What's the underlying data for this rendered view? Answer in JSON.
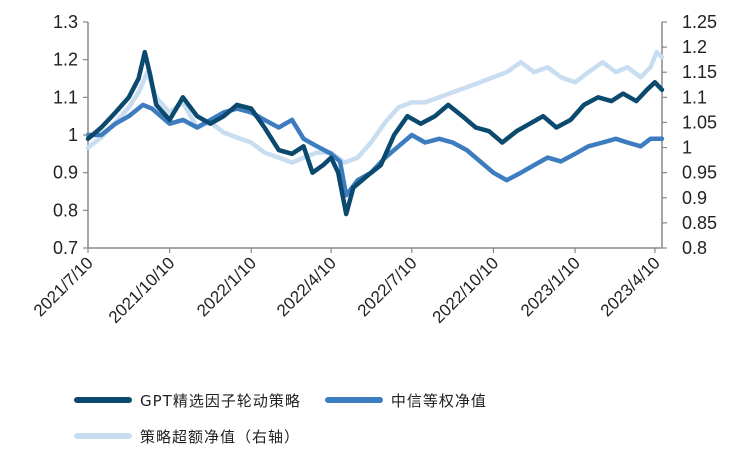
{
  "chart_data": {
    "type": "line",
    "x_ticks": [
      "2021/7/10",
      "2021/10/10",
      "2022/1/10",
      "2022/4/10",
      "2022/7/10",
      "2022/10/10",
      "2023/1/10",
      "2023/4/10"
    ],
    "x_range": [
      "2021-07-10",
      "2023-04-18"
    ],
    "y_left": {
      "ticks": [
        "1.3",
        "1.2",
        "1.1",
        "1",
        "0.9",
        "0.8",
        "0.7"
      ],
      "range": [
        0.7,
        1.3
      ]
    },
    "y_right": {
      "ticks": [
        "1.25",
        "1.2",
        "1.15",
        "1.1",
        "1.05",
        "1",
        "0.95",
        "0.9",
        "0.85",
        "0.8"
      ],
      "range": [
        0.8,
        1.25
      ]
    },
    "grid": false,
    "legend_position": "bottom",
    "series": [
      {
        "name": "GPT精选因子轮动策略",
        "axis": "left",
        "color": "#0b4a6e",
        "points": [
          [
            "2021-07-10",
            0.99
          ],
          [
            "2021-07-25",
            1.02
          ],
          [
            "2021-08-10",
            1.06
          ],
          [
            "2021-08-25",
            1.1
          ],
          [
            "2021-09-05",
            1.15
          ],
          [
            "2021-09-12",
            1.22
          ],
          [
            "2021-09-18",
            1.16
          ],
          [
            "2021-09-25",
            1.08
          ],
          [
            "2021-10-10",
            1.04
          ],
          [
            "2021-10-25",
            1.1
          ],
          [
            "2021-11-10",
            1.05
          ],
          [
            "2021-11-25",
            1.03
          ],
          [
            "2021-12-10",
            1.05
          ],
          [
            "2021-12-25",
            1.08
          ],
          [
            "2022-01-10",
            1.07
          ],
          [
            "2022-01-25",
            1.02
          ],
          [
            "2022-02-10",
            0.96
          ],
          [
            "2022-02-25",
            0.95
          ],
          [
            "2022-03-10",
            0.97
          ],
          [
            "2022-03-20",
            0.9
          ],
          [
            "2022-04-01",
            0.92
          ],
          [
            "2022-04-10",
            0.94
          ],
          [
            "2022-04-18",
            0.9
          ],
          [
            "2022-04-27",
            0.79
          ],
          [
            "2022-05-05",
            0.86
          ],
          [
            "2022-05-20",
            0.89
          ],
          [
            "2022-06-05",
            0.92
          ],
          [
            "2022-06-20",
            1.0
          ],
          [
            "2022-07-05",
            1.05
          ],
          [
            "2022-07-20",
            1.03
          ],
          [
            "2022-08-05",
            1.05
          ],
          [
            "2022-08-20",
            1.08
          ],
          [
            "2022-09-05",
            1.05
          ],
          [
            "2022-09-20",
            1.02
          ],
          [
            "2022-10-05",
            1.01
          ],
          [
            "2022-10-20",
            0.98
          ],
          [
            "2022-11-05",
            1.01
          ],
          [
            "2022-11-20",
            1.03
          ],
          [
            "2022-12-05",
            1.05
          ],
          [
            "2022-12-20",
            1.02
          ],
          [
            "2023-01-05",
            1.04
          ],
          [
            "2023-01-20",
            1.08
          ],
          [
            "2023-02-05",
            1.1
          ],
          [
            "2023-02-20",
            1.09
          ],
          [
            "2023-03-05",
            1.11
          ],
          [
            "2023-03-20",
            1.09
          ],
          [
            "2023-04-01",
            1.12
          ],
          [
            "2023-04-10",
            1.14
          ],
          [
            "2023-04-18",
            1.12
          ]
        ]
      },
      {
        "name": "中信等权净值",
        "axis": "left",
        "color": "#3e7cc0",
        "points": [
          [
            "2021-07-10",
            1.0
          ],
          [
            "2021-07-25",
            1.0
          ],
          [
            "2021-08-10",
            1.03
          ],
          [
            "2021-08-25",
            1.05
          ],
          [
            "2021-09-10",
            1.08
          ],
          [
            "2021-09-20",
            1.07
          ],
          [
            "2021-10-10",
            1.03
          ],
          [
            "2021-10-25",
            1.04
          ],
          [
            "2021-11-10",
            1.02
          ],
          [
            "2021-11-25",
            1.04
          ],
          [
            "2021-12-10",
            1.06
          ],
          [
            "2021-12-25",
            1.07
          ],
          [
            "2022-01-10",
            1.06
          ],
          [
            "2022-01-25",
            1.04
          ],
          [
            "2022-02-10",
            1.02
          ],
          [
            "2022-02-25",
            1.04
          ],
          [
            "2022-03-10",
            0.99
          ],
          [
            "2022-03-25",
            0.97
          ],
          [
            "2022-04-10",
            0.95
          ],
          [
            "2022-04-20",
            0.93
          ],
          [
            "2022-04-27",
            0.84
          ],
          [
            "2022-05-10",
            0.88
          ],
          [
            "2022-05-25",
            0.9
          ],
          [
            "2022-06-10",
            0.94
          ],
          [
            "2022-06-25",
            0.97
          ],
          [
            "2022-07-10",
            1.0
          ],
          [
            "2022-07-25",
            0.98
          ],
          [
            "2022-08-10",
            0.99
          ],
          [
            "2022-08-25",
            0.98
          ],
          [
            "2022-09-10",
            0.96
          ],
          [
            "2022-09-25",
            0.93
          ],
          [
            "2022-10-10",
            0.9
          ],
          [
            "2022-10-25",
            0.88
          ],
          [
            "2022-11-10",
            0.9
          ],
          [
            "2022-11-25",
            0.92
          ],
          [
            "2022-12-10",
            0.94
          ],
          [
            "2022-12-25",
            0.93
          ],
          [
            "2023-01-10",
            0.95
          ],
          [
            "2023-01-25",
            0.97
          ],
          [
            "2023-02-10",
            0.98
          ],
          [
            "2023-02-25",
            0.99
          ],
          [
            "2023-03-10",
            0.98
          ],
          [
            "2023-03-25",
            0.97
          ],
          [
            "2023-04-05",
            0.99
          ],
          [
            "2023-04-18",
            0.99
          ]
        ]
      },
      {
        "name": "策略超额净值（右轴）",
        "axis": "right",
        "color": "#c9ddf1",
        "points": [
          [
            "2021-07-10",
            1.0
          ],
          [
            "2021-07-25",
            1.02
          ],
          [
            "2021-08-10",
            1.05
          ],
          [
            "2021-08-25",
            1.08
          ],
          [
            "2021-09-05",
            1.11
          ],
          [
            "2021-09-15",
            1.15
          ],
          [
            "2021-09-25",
            1.1
          ],
          [
            "2021-10-10",
            1.07
          ],
          [
            "2021-10-25",
            1.09
          ],
          [
            "2021-11-10",
            1.04
          ],
          [
            "2021-11-25",
            1.05
          ],
          [
            "2021-12-10",
            1.03
          ],
          [
            "2021-12-25",
            1.02
          ],
          [
            "2022-01-10",
            1.01
          ],
          [
            "2022-01-25",
            0.99
          ],
          [
            "2022-02-10",
            0.98
          ],
          [
            "2022-02-25",
            0.97
          ],
          [
            "2022-03-10",
            0.98
          ],
          [
            "2022-03-25",
            0.99
          ],
          [
            "2022-04-10",
            0.99
          ],
          [
            "2022-04-25",
            0.97
          ],
          [
            "2022-05-10",
            0.98
          ],
          [
            "2022-05-25",
            1.01
          ],
          [
            "2022-06-10",
            1.05
          ],
          [
            "2022-06-25",
            1.08
          ],
          [
            "2022-07-10",
            1.09
          ],
          [
            "2022-07-25",
            1.09
          ],
          [
            "2022-08-10",
            1.1
          ],
          [
            "2022-08-25",
            1.11
          ],
          [
            "2022-09-10",
            1.12
          ],
          [
            "2022-09-25",
            1.13
          ],
          [
            "2022-10-10",
            1.14
          ],
          [
            "2022-10-25",
            1.15
          ],
          [
            "2022-11-10",
            1.17
          ],
          [
            "2022-11-25",
            1.15
          ],
          [
            "2022-12-10",
            1.16
          ],
          [
            "2022-12-25",
            1.14
          ],
          [
            "2023-01-10",
            1.13
          ],
          [
            "2023-01-25",
            1.15
          ],
          [
            "2023-02-10",
            1.17
          ],
          [
            "2023-02-25",
            1.15
          ],
          [
            "2023-03-10",
            1.16
          ],
          [
            "2023-03-25",
            1.14
          ],
          [
            "2023-04-05",
            1.16
          ],
          [
            "2023-04-12",
            1.19
          ],
          [
            "2023-04-18",
            1.18
          ]
        ]
      }
    ]
  }
}
